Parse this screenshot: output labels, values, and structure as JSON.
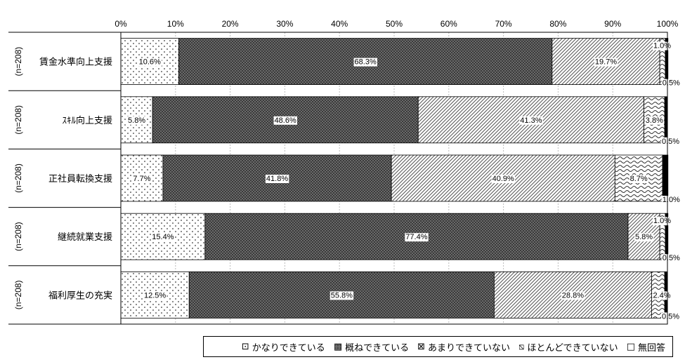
{
  "chart_data": {
    "type": "bar",
    "orientation": "horizontal",
    "stacked": true,
    "percent_scale": true,
    "x_ticks": [
      "0%",
      "10%",
      "20%",
      "30%",
      "40%",
      "50%",
      "60%",
      "70%",
      "80%",
      "90%",
      "100%"
    ],
    "xlim": [
      0,
      100
    ],
    "grid": true,
    "legend_position": "bottom",
    "categories": [
      {
        "label": "賃金水準向上支援",
        "n": "(n=208)"
      },
      {
        "label": "ｽｷﾙ向上支援",
        "n": "(n=208)"
      },
      {
        "label": "正社員転換支援",
        "n": "(n=208)"
      },
      {
        "label": "継続就業支援",
        "n": "(n=208)"
      },
      {
        "label": "福利厚生の充実",
        "n": "(n=208)"
      }
    ],
    "series": [
      {
        "name": "かなりできている",
        "pattern": "dots",
        "values": [
          10.6,
          5.8,
          7.7,
          15.4,
          12.5
        ],
        "labels": [
          "10.6%",
          "5.8%",
          "7.7%",
          "15.4%",
          "12.5%"
        ]
      },
      {
        "name": "概ねできている",
        "pattern": "crosshatch",
        "values": [
          68.3,
          48.6,
          41.8,
          77.4,
          55.8
        ],
        "labels": [
          "68.3%",
          "48.6%",
          "41.8%",
          "77.4%",
          "55.8%"
        ]
      },
      {
        "name": "あまりできていない",
        "pattern": "diagonal",
        "values": [
          19.7,
          41.3,
          40.9,
          5.8,
          28.8
        ],
        "labels": [
          "19.7%",
          "41.3%",
          "40.9%",
          "5.8%",
          "28.8%"
        ]
      },
      {
        "name": "ほとんどできていない",
        "pattern": "wave",
        "values": [
          1.0,
          3.8,
          8.7,
          1.0,
          2.4
        ],
        "labels": [
          "1.0%",
          "3.8%",
          "8.7%",
          "1.0%",
          "2.4%"
        ]
      },
      {
        "name": "無回答",
        "pattern": "solid",
        "values": [
          0.5,
          0.5,
          1.0,
          0.5,
          0.5
        ],
        "labels": [
          "0.5%",
          "0.5%",
          "1.0%",
          "0.5%",
          "0.5%"
        ]
      }
    ]
  },
  "legend": {
    "items": [
      {
        "symbol": "⊡",
        "label": "かなりできている"
      },
      {
        "symbol": "▩",
        "label": "概ねできている"
      },
      {
        "symbol": "⊠",
        "label": "あまりできていない"
      },
      {
        "symbol": "⧅",
        "label": "ほとんどできていない"
      },
      {
        "symbol": "□",
        "label": "無回答"
      }
    ]
  }
}
